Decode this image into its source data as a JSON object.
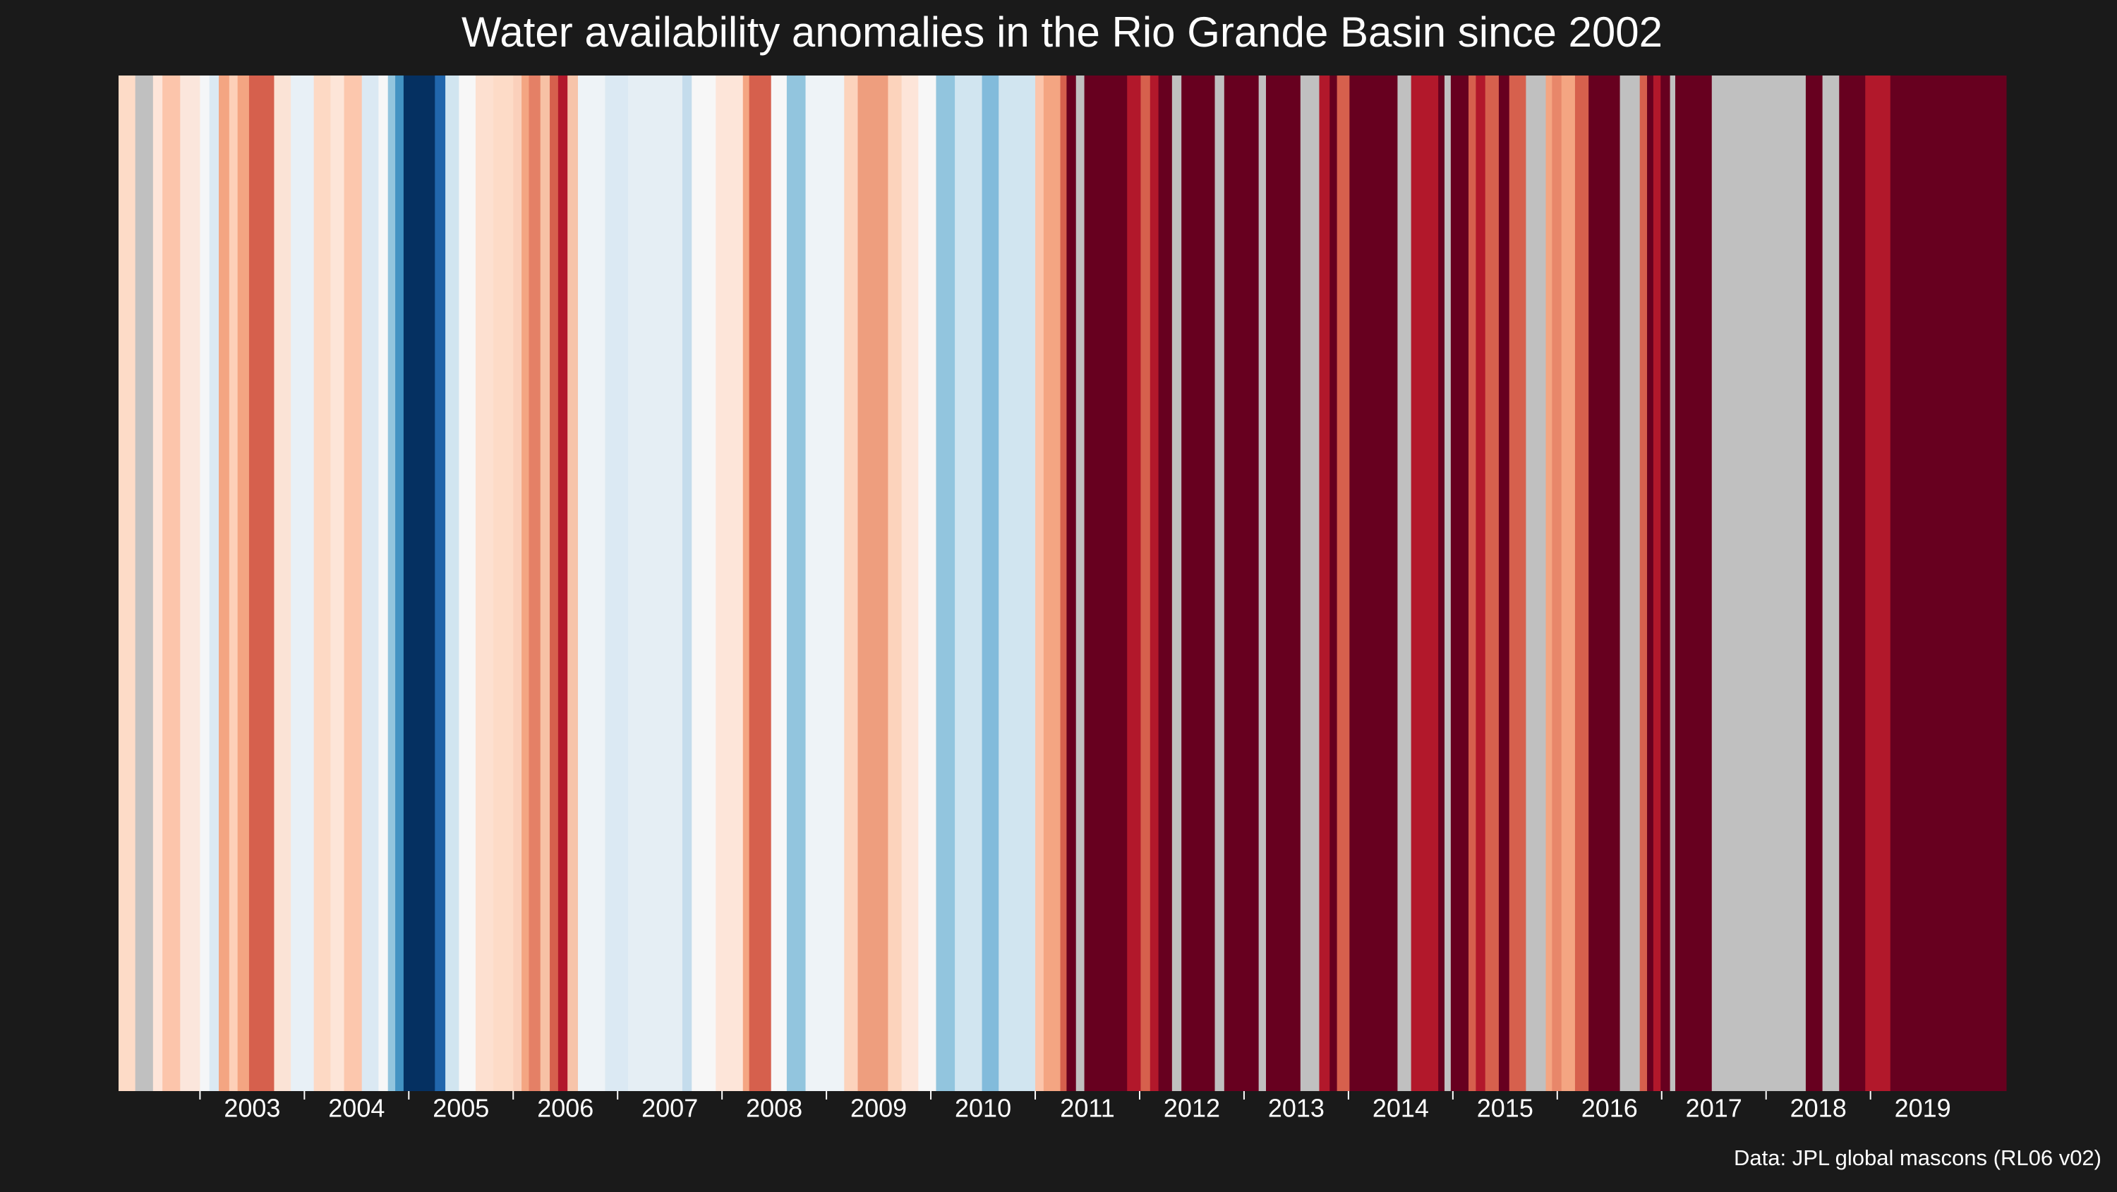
{
  "chart_data": {
    "type": "stripes",
    "title": "Water availability anomalies in the Rio Grande Basin since 2002",
    "source": "Data: JPL global mascons (RL06 v02)",
    "xlim": [
      2002.22,
      2020.3
    ],
    "xticks": [
      2003,
      2004,
      2005,
      2006,
      2007,
      2008,
      2009,
      2010,
      2011,
      2012,
      2013,
      2014,
      2015,
      2016,
      2017,
      2018,
      2019
    ],
    "bins": [
      2002.22,
      2002.38,
      2002.55,
      2002.64,
      2002.81,
      2003.0,
      2003.09,
      2003.18,
      2003.28,
      2003.36,
      2003.47,
      2003.71,
      2003.87,
      2004.09,
      2004.25,
      2004.38,
      2004.55,
      2004.71,
      2004.8,
      2004.87,
      2004.95,
      2005.25,
      2005.35,
      2005.48,
      2005.64,
      2005.81,
      2006.0,
      2006.08,
      2006.15,
      2006.26,
      2006.35,
      2006.43,
      2006.52,
      2006.62,
      2006.88,
      2007.1,
      2007.62,
      2007.71,
      2007.94,
      2008.2,
      2008.26,
      2008.47,
      2008.62,
      2008.8,
      2009.17,
      2009.3,
      2009.59,
      2009.72,
      2009.88,
      2010.05,
      2010.23,
      2010.49,
      2010.65,
      2011.0,
      2011.08,
      2011.24,
      2011.3,
      2011.39,
      2011.47,
      2011.88,
      2012.01,
      2012.1,
      2012.18,
      2012.31,
      2012.4,
      2012.72,
      2012.81,
      2013.14,
      2013.21,
      2013.54,
      2013.72,
      2013.82,
      2013.89,
      2014.01,
      2014.47,
      2014.6,
      2014.86,
      2014.92,
      2014.98,
      2015.15,
      2015.22,
      2015.31,
      2015.44,
      2015.54,
      2015.7,
      2015.89,
      2015.95,
      2016.04,
      2016.17,
      2016.3,
      2016.6,
      2016.79,
      2016.86,
      2016.92,
      2016.99,
      2017.08,
      2017.13,
      2017.48,
      2018.38,
      2018.54,
      2018.7,
      2018.95,
      2019.19,
      2020.3
    ],
    "colors": [
      "#fddbc7",
      "#c0c0c0",
      "#fee5d9",
      "#fcc5ab",
      "#fbe6dc",
      "#f4f6f8",
      "#dbe9f3",
      "#f4a582",
      "#fdd0b8",
      "#f4a582",
      "#d6604d",
      "#fbe3d6",
      "#e8f0f6",
      "#fdd9c4",
      "#fde5d8",
      "#fcc7ad",
      "#dbe9f3",
      "#f7f7f7",
      "#92c5de",
      "#4393c3",
      "#053061",
      "#2166ac",
      "#d1e5f0",
      "#f7f7f7",
      "#fde0d0",
      "#fddbc7",
      "#fbd0bb",
      "#f4a582",
      "#e48066",
      "#f7c1a5",
      "#d6604d",
      "#b2182b",
      "#f7c4aa",
      "#eef3f7",
      "#dbe9f3",
      "#e5eef4",
      "#c4dcec",
      "#f7f7f7",
      "#fde5d9",
      "#f4a582",
      "#d6604d",
      "#f7f7f7",
      "#92c5de",
      "#eef3f7",
      "#fcd3bc",
      "#ee9e7e",
      "#fcd3bc",
      "#fde5d9",
      "#f7f7f7",
      "#92c5de",
      "#d1e5f0",
      "#82bbdb",
      "#d1e5f0",
      "#fcc5ab",
      "#f4a582",
      "#d6604d",
      "#67001f",
      "#c0c0c0",
      "#67001f",
      "#b2182b",
      "#d6604d",
      "#b2182b",
      "#67001f",
      "#c0c0c0",
      "#67001f",
      "#c0c0c0",
      "#67001f",
      "#c0c0c0",
      "#67001f",
      "#c0c0c0",
      "#b2182b",
      "#67001f",
      "#d6604d",
      "#67001f",
      "#c0c0c0",
      "#b2182b",
      "#67001f",
      "#c0c0c0",
      "#67001f",
      "#d6604d",
      "#b2182b",
      "#d6604d",
      "#67001f",
      "#d6604d",
      "#c0c0c0",
      "#f4a582",
      "#e8876a",
      "#f4a582",
      "#d6604d",
      "#67001f",
      "#c0c0c0",
      "#d6604d",
      "#67001f",
      "#b2182b",
      "#67001f",
      "#c0c0c0",
      "#67001f",
      "#c0c0c0",
      "#67001f",
      "#c0c0c0",
      "#67001f",
      "#b2182b",
      "#67001f"
    ]
  }
}
